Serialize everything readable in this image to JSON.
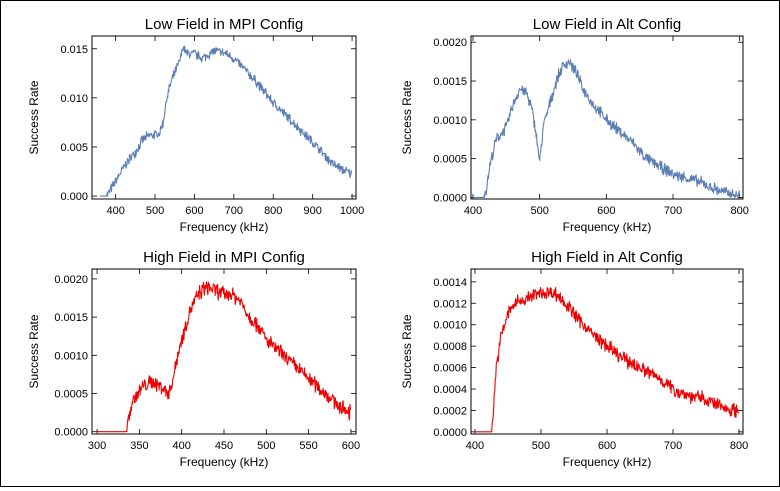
{
  "chart_data": [
    {
      "type": "line",
      "title": "Low Field in MPI Config",
      "xlabel": "Frequency (kHz)",
      "ylabel": "Success Rate",
      "xlim": [
        340,
        1010
      ],
      "ylim": [
        -0.0003,
        0.0163
      ],
      "xticks": [
        400,
        500,
        600,
        700,
        800,
        900,
        1000
      ],
      "xticklabels": [
        "400",
        "500",
        "600",
        "700",
        "800",
        "900",
        "1000"
      ],
      "yticks": [
        0,
        0.005,
        0.01,
        0.015
      ],
      "yticklabels": [
        "0.000",
        "0.005",
        "0.010",
        "0.015"
      ],
      "color": "#5b7fb4",
      "noise": 0.0006,
      "series": [
        {
          "x": [
            360,
            375,
            380,
            390,
            410,
            430,
            450,
            470,
            490,
            510,
            520,
            530,
            540,
            555,
            565,
            570,
            580,
            600,
            620,
            650,
            680,
            700,
            720,
            760,
            800,
            850,
            900,
            950,
            980,
            1000
          ],
          "y": [
            0.0,
            0.0,
            0.0002,
            0.0008,
            0.0022,
            0.0035,
            0.0045,
            0.0058,
            0.0062,
            0.0063,
            0.0074,
            0.01,
            0.0115,
            0.013,
            0.014,
            0.0152,
            0.0145,
            0.0145,
            0.014,
            0.0148,
            0.0145,
            0.014,
            0.0132,
            0.0115,
            0.0095,
            0.0075,
            0.0055,
            0.0033,
            0.0026,
            0.0022
          ]
        }
      ]
    },
    {
      "type": "line",
      "title": "Low Field in Alt Config",
      "xlabel": "Frequency (kHz)",
      "ylabel": "Success Rate",
      "xlim": [
        397,
        805
      ],
      "ylim": [
        -2e-05,
        0.00208
      ],
      "xticks": [
        400,
        500,
        600,
        700,
        800
      ],
      "xticklabels": [
        "400",
        "500",
        "600",
        "700",
        "800"
      ],
      "yticks": [
        0,
        0.0005,
        0.001,
        0.0015,
        0.002
      ],
      "yticklabels": [
        "0.0000",
        "0.0005",
        "0.0010",
        "0.0015",
        "0.0020"
      ],
      "color": "#5b7fb4",
      "noise": 9e-05,
      "series": [
        {
          "x": [
            400,
            415,
            420,
            425,
            435,
            450,
            460,
            470,
            480,
            488,
            495,
            500,
            505,
            515,
            525,
            535,
            545,
            555,
            565,
            580,
            600,
            620,
            640,
            660,
            680,
            700,
            720,
            740,
            760,
            780,
            800
          ],
          "y": [
            0.0,
            0.0,
            0.0001,
            0.0004,
            0.00075,
            0.0009,
            0.0012,
            0.0014,
            0.00135,
            0.00115,
            0.0008,
            0.00045,
            0.0009,
            0.0012,
            0.0015,
            0.0017,
            0.00175,
            0.0016,
            0.0014,
            0.0012,
            0.001,
            0.00085,
            0.0007,
            0.0005,
            0.0004,
            0.0003,
            0.00025,
            0.0002,
            0.00012,
            6e-05,
            2e-05
          ]
        }
      ]
    },
    {
      "type": "line",
      "title": "High Field in MPI Config",
      "xlabel": "Frequency (kHz)",
      "ylabel": "Success Rate",
      "xlim": [
        294,
        606
      ],
      "ylim": [
        -3e-05,
        0.00213
      ],
      "xticks": [
        300,
        350,
        400,
        450,
        500,
        550,
        600
      ],
      "xticklabels": [
        "300",
        "350",
        "400",
        "450",
        "500",
        "550",
        "600"
      ],
      "yticks": [
        0,
        0.0005,
        0.001,
        0.0015,
        0.002
      ],
      "yticklabels": [
        "0.0000",
        "0.0005",
        "0.0010",
        "0.0015",
        "0.0020"
      ],
      "color": "#ee0000",
      "noise": 0.00012,
      "series": [
        {
          "x": [
            300,
            334,
            338,
            342,
            348,
            355,
            365,
            375,
            385,
            390,
            395,
            400,
            405,
            410,
            420,
            430,
            440,
            450,
            460,
            470,
            480,
            490,
            500,
            520,
            540,
            560,
            580,
            590,
            600
          ],
          "y": [
            0.0,
            0.0,
            0.0002,
            0.0004,
            0.0005,
            0.0006,
            0.00065,
            0.0006,
            0.0005,
            0.0007,
            0.001,
            0.0012,
            0.0014,
            0.0016,
            0.0018,
            0.0019,
            0.00185,
            0.0018,
            0.0018,
            0.0017,
            0.0015,
            0.0014,
            0.0012,
            0.001,
            0.0008,
            0.0006,
            0.0004,
            0.0003,
            0.00025
          ]
        }
      ]
    },
    {
      "type": "line",
      "title": "High Field in Alt Config",
      "xlabel": "Frequency (kHz)",
      "ylabel": "Success Rate",
      "xlim": [
        394,
        806
      ],
      "ylim": [
        -2e-05,
        0.00152
      ],
      "xticks": [
        400,
        500,
        600,
        700,
        800
      ],
      "xticklabels": [
        "400",
        "500",
        "600",
        "700",
        "800"
      ],
      "yticks": [
        0,
        0.0002,
        0.0004,
        0.0006,
        0.0008,
        0.001,
        0.0012,
        0.0014
      ],
      "yticklabels": [
        "0.0000",
        "0.0002",
        "0.0004",
        "0.0006",
        "0.0008",
        "0.0010",
        "0.0012",
        "0.0014"
      ],
      "color": "#ee0000",
      "noise": 8e-05,
      "series": [
        {
          "x": [
            400,
            425,
            428,
            432,
            440,
            450,
            460,
            480,
            500,
            520,
            530,
            550,
            580,
            600,
            620,
            650,
            680,
            700,
            720,
            750,
            780,
            800
          ],
          "y": [
            0.0,
            0.0,
            0.0002,
            0.0006,
            0.0009,
            0.0011,
            0.0012,
            0.00125,
            0.0013,
            0.0013,
            0.00125,
            0.0011,
            0.0009,
            0.0008,
            0.0007,
            0.0006,
            0.0005,
            0.0004,
            0.00035,
            0.0003,
            0.00022,
            0.0002
          ]
        }
      ]
    }
  ]
}
